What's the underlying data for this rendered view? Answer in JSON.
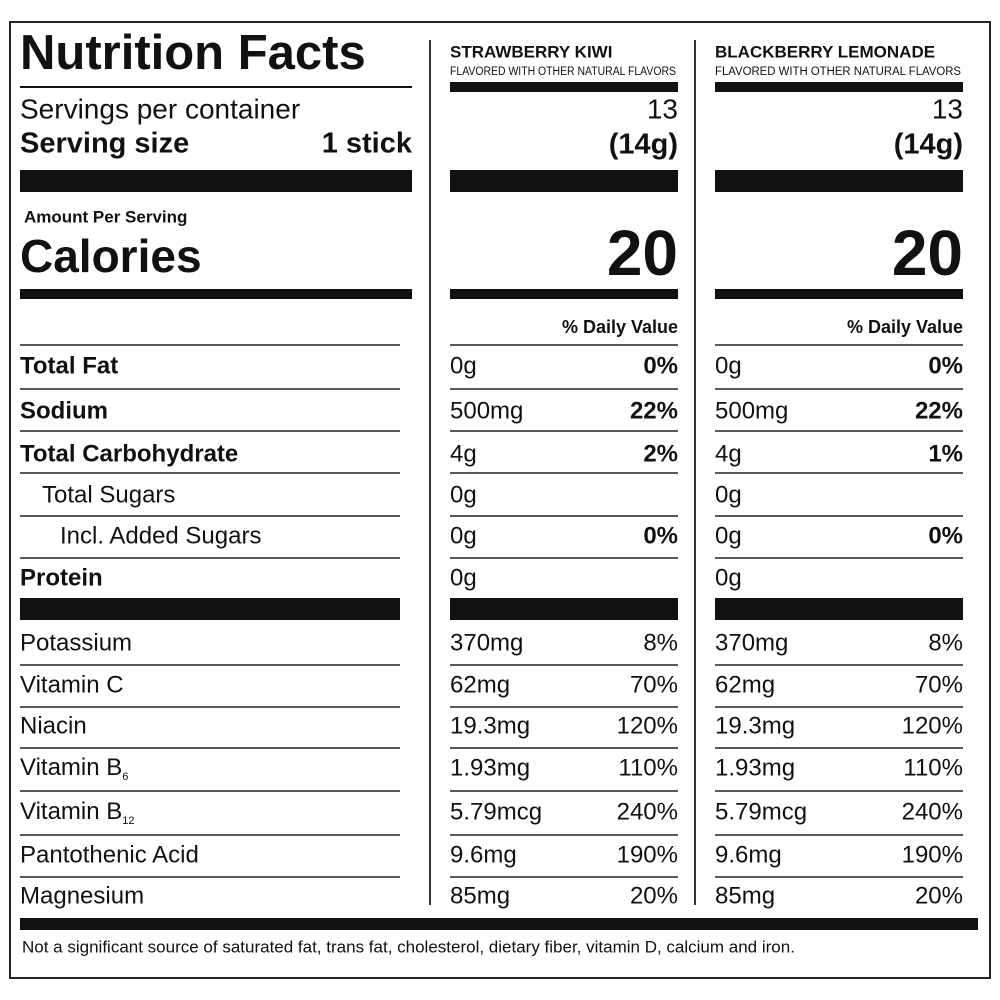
{
  "title": "Nutrition Facts",
  "servings_label": "Servings per container",
  "serving_size_label": "Serving size",
  "serving_size_value": "1 stick",
  "amount_per_serving": "Amount Per Serving",
  "calories_label": "Calories",
  "daily_value_header": "% Daily Value",
  "nutrients": [
    {
      "label": "Total Fat",
      "bold": true,
      "level": 0
    },
    {
      "label": "Sodium",
      "bold": true,
      "level": 0
    },
    {
      "label": "Total Carbohydrate",
      "bold": true,
      "level": 0
    },
    {
      "label": "Total Sugars",
      "bold": false,
      "level": 1
    },
    {
      "label": "Incl. Added Sugars",
      "bold": false,
      "level": 2
    },
    {
      "label": "Protein",
      "bold": true,
      "level": 0
    }
  ],
  "vitamins_minerals": [
    {
      "label": "Potassium"
    },
    {
      "label": "Vitamin C"
    },
    {
      "label": "Niacin"
    },
    {
      "label": "Vitamin B",
      "subscript": "6"
    },
    {
      "label": "Vitamin B",
      "subscript": "12"
    },
    {
      "label": "Pantothenic Acid"
    },
    {
      "label": "Magnesium"
    }
  ],
  "products": [
    {
      "name": "STRAWBERRY KIWI",
      "subtitle": "FLAVORED WITH OTHER NATURAL FLAVORS",
      "servings": "13",
      "serving_size": "(14g)",
      "calories": 20,
      "nutrients": [
        {
          "amount": "0g",
          "dv": "0%"
        },
        {
          "amount": "500mg",
          "dv": "22%"
        },
        {
          "amount": "4g",
          "dv": "2%"
        },
        {
          "amount": "0g",
          "dv": null
        },
        {
          "amount": "0g",
          "dv": "0%"
        },
        {
          "amount": "0g",
          "dv": null
        }
      ],
      "vitamins_minerals": [
        {
          "amount": "370mg",
          "dv": "8%"
        },
        {
          "amount": "62mg",
          "dv": "70%"
        },
        {
          "amount": "19.3mg",
          "dv": "120%"
        },
        {
          "amount": "1.93mg",
          "dv": "110%"
        },
        {
          "amount": "5.79mcg",
          "dv": "240%"
        },
        {
          "amount": "9.6mg",
          "dv": "190%"
        },
        {
          "amount": "85mg",
          "dv": "20%"
        }
      ]
    },
    {
      "name": "BLACKBERRY LEMONADE",
      "subtitle": "FLAVORED WITH OTHER NATURAL FLAVORS",
      "servings": "13",
      "serving_size": "(14g)",
      "calories": 20,
      "nutrients": [
        {
          "amount": "0g",
          "dv": "0%"
        },
        {
          "amount": "500mg",
          "dv": "22%"
        },
        {
          "amount": "4g",
          "dv": "1%"
        },
        {
          "amount": "0g",
          "dv": null
        },
        {
          "amount": "0g",
          "dv": "0%"
        },
        {
          "amount": "0g",
          "dv": null
        }
      ],
      "vitamins_minerals": [
        {
          "amount": "370mg",
          "dv": "8%"
        },
        {
          "amount": "62mg",
          "dv": "70%"
        },
        {
          "amount": "19.3mg",
          "dv": "120%"
        },
        {
          "amount": "1.93mg",
          "dv": "110%"
        },
        {
          "amount": "5.79mcg",
          "dv": "240%"
        },
        {
          "amount": "9.6mg",
          "dv": "190%"
        },
        {
          "amount": "85mg",
          "dv": "20%"
        }
      ]
    }
  ],
  "footnote": "Not a significant source of saturated fat, trans fat, cholesterol, dietary fiber, vitamin D, calcium and iron."
}
